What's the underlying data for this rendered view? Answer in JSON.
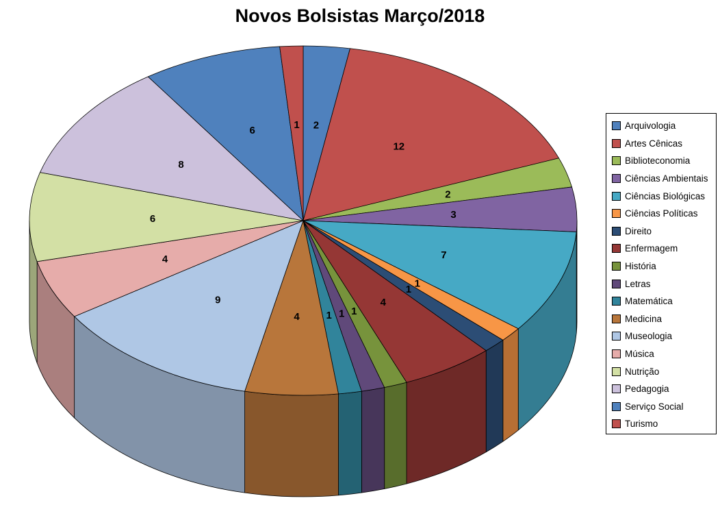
{
  "title": "Novos Bolsistas Março/2018",
  "chart_data": {
    "type": "pie",
    "style": "3d",
    "title": "Novos Bolsistas Março/2018",
    "total": 73,
    "start": "top",
    "direction": "clockwise",
    "legend_position": "right",
    "data_labels": "values",
    "categories": [
      "Arquivologia",
      "Artes Cênicas",
      "Biblioteconomia",
      "Ciências Ambientais",
      "Ciências Biológicas",
      "Ciências Políticas",
      "Direito",
      "Enfermagem",
      "História",
      "Letras",
      "Matemática",
      "Medicina",
      "Museologia",
      "Música",
      "Nutrição",
      "Pedagogia",
      "Serviço Social",
      "Turismo"
    ],
    "values": [
      2,
      12,
      2,
      3,
      7,
      1,
      1,
      4,
      1,
      1,
      1,
      4,
      9,
      4,
      6,
      8,
      6,
      1
    ],
    "colors": [
      "#4F81BD",
      "#C0504D",
      "#9BBB59",
      "#8064A2",
      "#46A9C5",
      "#F79646",
      "#2C4D75",
      "#953735",
      "#77933C",
      "#60497A",
      "#31849B",
      "#B8763B",
      "#AFC7E5",
      "#E6ACAA",
      "#D3E0A5",
      "#CCC1DC",
      "#4F81BD",
      "#C0504D"
    ]
  }
}
